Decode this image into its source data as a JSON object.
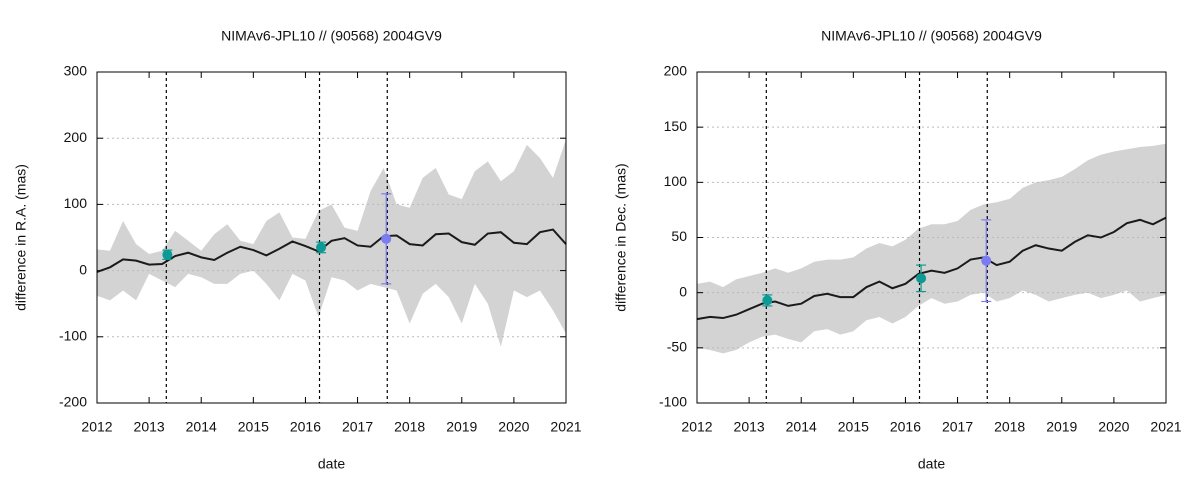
{
  "chart_data": [
    {
      "type": "line",
      "title": "NIMAv6-JPL10 // (90568) 2004GV9",
      "xlabel": "date",
      "ylabel": "difference in R.A. (mas)",
      "xlim": [
        2012,
        2021
      ],
      "ylim": [
        -200,
        300
      ],
      "xticks": [
        2012,
        2013,
        2014,
        2015,
        2016,
        2017,
        2018,
        2019,
        2020,
        2021
      ],
      "yticks": [
        -200,
        -100,
        0,
        100,
        200,
        300
      ],
      "grid": true,
      "x": [
        2012,
        2012.25,
        2012.5,
        2012.75,
        2013,
        2013.25,
        2013.5,
        2013.75,
        2014,
        2014.25,
        2014.5,
        2014.75,
        2015,
        2015.25,
        2015.5,
        2015.75,
        2016,
        2016.25,
        2016.5,
        2016.75,
        2017,
        2017.25,
        2017.5,
        2017.75,
        2018,
        2018.25,
        2018.5,
        2018.75,
        2019,
        2019.25,
        2019.5,
        2019.75,
        2020,
        2020.25,
        2020.5,
        2020.75,
        2021
      ],
      "line": {
        "color": "#1a1a1a",
        "values": [
          -2,
          5,
          17,
          15,
          9,
          10,
          22,
          27,
          20,
          16,
          27,
          36,
          31,
          23,
          33,
          44,
          37,
          29,
          45,
          49,
          38,
          36,
          52,
          53,
          40,
          38,
          55,
          56,
          43,
          39,
          56,
          58,
          42,
          40,
          58,
          62,
          40
        ]
      },
      "band": {
        "color": "#d3d3d3",
        "upper": [
          32,
          30,
          75,
          40,
          25,
          30,
          60,
          45,
          30,
          55,
          70,
          45,
          40,
          75,
          88,
          50,
          48,
          90,
          100,
          65,
          60,
          120,
          155,
          100,
          95,
          140,
          155,
          115,
          108,
          150,
          165,
          135,
          150,
          190,
          170,
          140,
          198
        ],
        "lower": [
          -38,
          -45,
          -30,
          -45,
          -5,
          -15,
          -25,
          -5,
          -10,
          -20,
          -20,
          -5,
          0,
          -20,
          -45,
          -5,
          -15,
          -70,
          -10,
          -15,
          -30,
          -20,
          -25,
          -30,
          -80,
          -35,
          -20,
          -40,
          -80,
          -20,
          -50,
          -115,
          -30,
          -40,
          -30,
          -60,
          -95
        ]
      },
      "vlines": [
        2013.33,
        2016.27,
        2017.57
      ],
      "errorbars": {
        "x": [
          2013.35,
          2016.3,
          2017.55
        ],
        "y": [
          24,
          35,
          48
        ],
        "err": [
          7,
          8,
          68
        ],
        "colors": [
          "#0e9a94",
          "#0e9a94",
          "#7b7bf2"
        ]
      }
    },
    {
      "type": "line",
      "title": "NIMAv6-JPL10 // (90568) 2004GV9",
      "xlabel": "date",
      "ylabel": "difference in Dec. (mas)",
      "xlim": [
        2012,
        2021
      ],
      "ylim": [
        -100,
        200
      ],
      "xticks": [
        2012,
        2013,
        2014,
        2015,
        2016,
        2017,
        2018,
        2019,
        2020,
        2021
      ],
      "yticks": [
        -100,
        -50,
        0,
        50,
        100,
        150,
        200
      ],
      "grid": true,
      "x": [
        2012,
        2012.25,
        2012.5,
        2012.75,
        2013,
        2013.25,
        2013.5,
        2013.75,
        2014,
        2014.25,
        2014.5,
        2014.75,
        2015,
        2015.25,
        2015.5,
        2015.75,
        2016,
        2016.25,
        2016.5,
        2016.75,
        2017,
        2017.25,
        2017.5,
        2017.75,
        2018,
        2018.25,
        2018.5,
        2018.75,
        2019,
        2019.25,
        2019.5,
        2019.75,
        2020,
        2020.25,
        2020.5,
        2020.75,
        2021
      ],
      "line": {
        "color": "#1a1a1a",
        "values": [
          -24,
          -22,
          -23,
          -20,
          -15,
          -10,
          -8,
          -12,
          -10,
          -3,
          -1,
          -4,
          -4,
          5,
          10,
          4,
          8,
          17,
          20,
          18,
          22,
          30,
          32,
          25,
          28,
          38,
          43,
          40,
          38,
          46,
          52,
          50,
          55,
          63,
          66,
          62,
          68
        ]
      },
      "band": {
        "color": "#d3d3d3",
        "upper": [
          8,
          10,
          5,
          12,
          15,
          18,
          22,
          18,
          22,
          28,
          30,
          30,
          32,
          40,
          45,
          42,
          48,
          58,
          62,
          62,
          65,
          75,
          80,
          82,
          85,
          95,
          100,
          102,
          105,
          112,
          120,
          125,
          128,
          130,
          132,
          133,
          135
        ],
        "lower": [
          -50,
          -52,
          -55,
          -52,
          -45,
          -40,
          -38,
          -42,
          -45,
          -35,
          -33,
          -38,
          -35,
          -25,
          -22,
          -28,
          -22,
          -12,
          -5,
          -10,
          -8,
          -2,
          0,
          -8,
          -5,
          2,
          -2,
          -8,
          -5,
          -2,
          0,
          -5,
          -2,
          2,
          -8,
          -5,
          -2
        ]
      },
      "vlines": [
        2013.33,
        2016.27,
        2017.57
      ],
      "errorbars": {
        "x": [
          2013.35,
          2016.3,
          2017.55
        ],
        "y": [
          -7,
          13,
          29
        ],
        "err": [
          5,
          12,
          37
        ],
        "colors": [
          "#0e9a94",
          "#0e9a94",
          "#7b7bf2"
        ]
      }
    }
  ]
}
